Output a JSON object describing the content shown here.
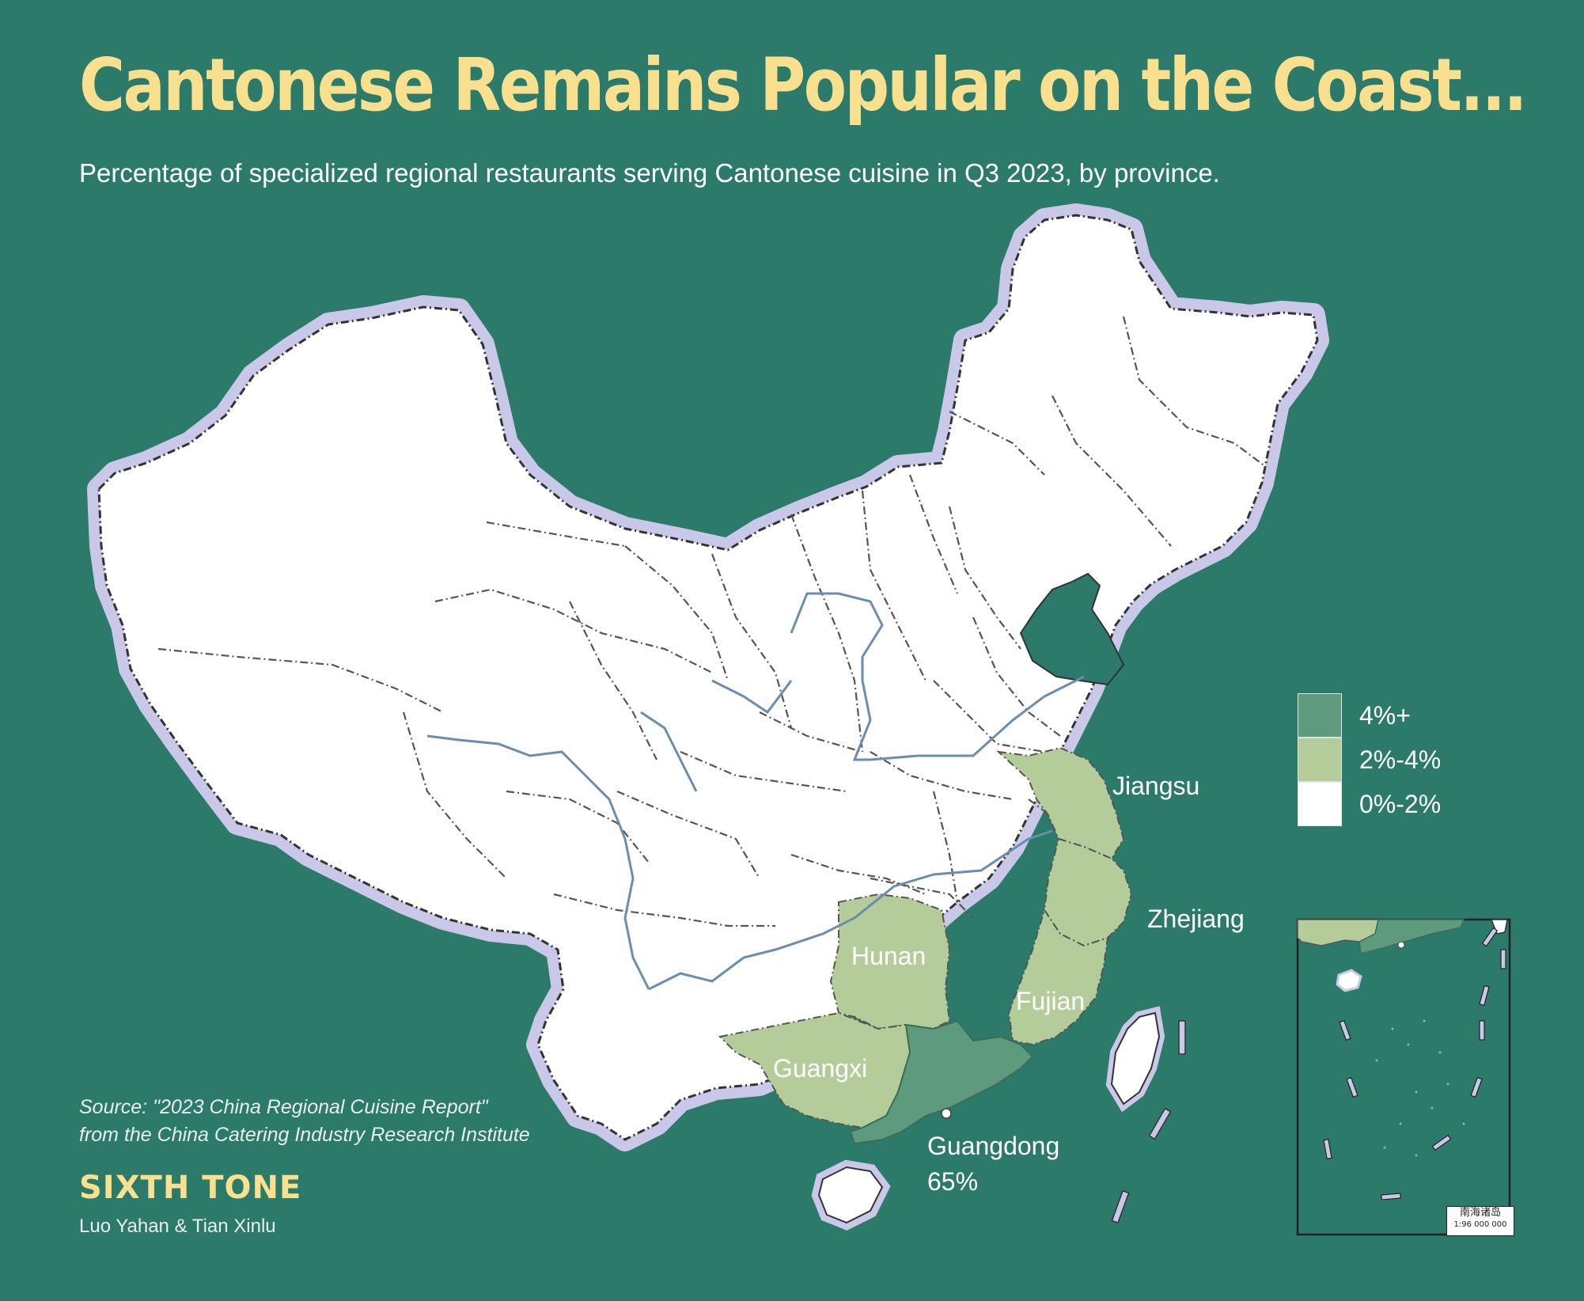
{
  "header": {
    "title": "Cantonese Remains Popular on the Coast...",
    "subtitle": "Percentage of specialized regional restaurants serving Cantonese cuisine in Q3 2023, by province."
  },
  "map": {
    "region": "China provinces",
    "colors": {
      "background": "#2c7a6a",
      "outline": "#c9c8e8",
      "tier_high": "#5e9a7d",
      "tier_mid": "#b4cc9a",
      "tier_low": "#ffffff",
      "river": "#6a8db2",
      "title": "#f9e08e"
    },
    "provinces": [
      {
        "name": "Guangdong",
        "tier": "4%+",
        "value_label": "65%"
      },
      {
        "name": "Guangxi",
        "tier": "2%-4%"
      },
      {
        "name": "Hunan",
        "tier": "2%-4%"
      },
      {
        "name": "Fujian",
        "tier": "2%-4%"
      },
      {
        "name": "Zhejiang",
        "tier": "2%-4%"
      },
      {
        "name": "Jiangsu",
        "tier": "2%-4%"
      }
    ],
    "legend": [
      {
        "label": "4%+",
        "color": "#5e9a7d"
      },
      {
        "label": "2%-4%",
        "color": "#b4cc9a"
      },
      {
        "label": "0%-2%",
        "color": "#ffffff"
      }
    ],
    "inset": {
      "caption": "南海诸岛",
      "scale": "1:96 000 000"
    }
  },
  "footer": {
    "source_line1": "Source: \"2023 China Regional Cuisine Report\"",
    "source_line2": "from the China Catering Industry Research Institute",
    "brand": "SIXTH TONE",
    "authors": "Luo Yahan & Tian Xinlu"
  }
}
